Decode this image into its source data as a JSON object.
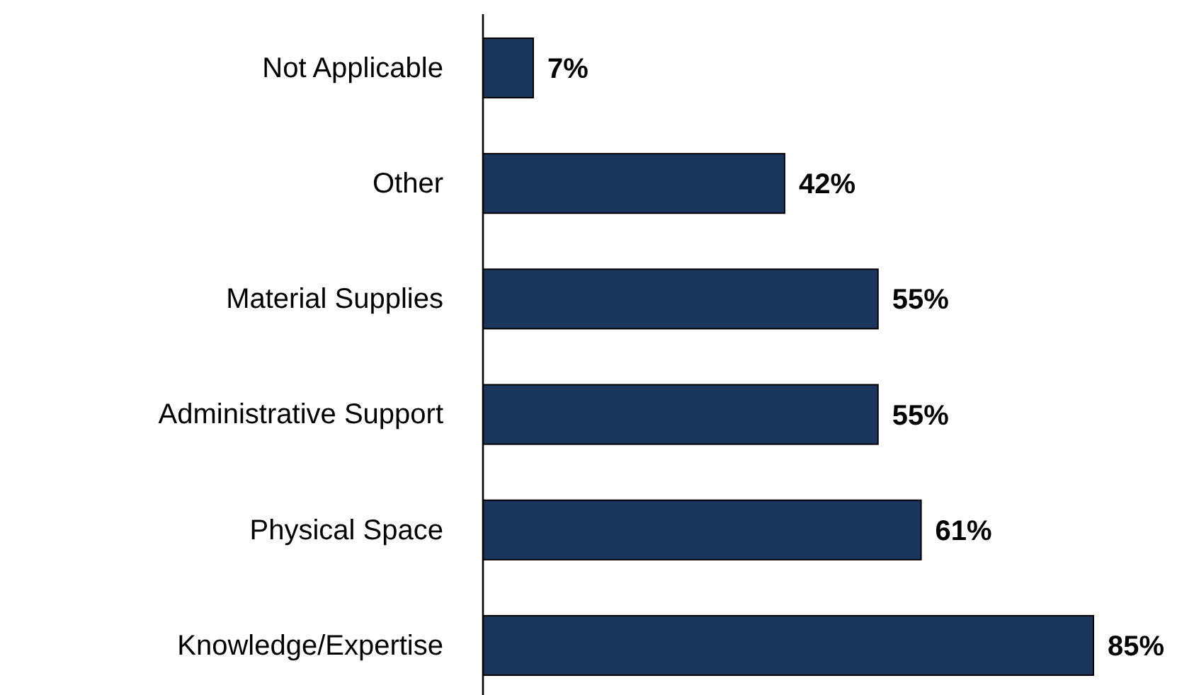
{
  "chart_data": {
    "type": "bar",
    "orientation": "horizontal",
    "categories": [
      "Not Applicable",
      "Other",
      "Material Supplies",
      "Administrative Support",
      "Physical Space",
      "Knowledge/Expertise"
    ],
    "values": [
      7,
      42,
      55,
      55,
      61,
      85
    ],
    "color": "#1b365d",
    "xlim": [
      0,
      85
    ],
    "data_labels": true,
    "value_labels": [
      "7%",
      "42%",
      "55%",
      "55%",
      "61%",
      "85%"
    ]
  }
}
